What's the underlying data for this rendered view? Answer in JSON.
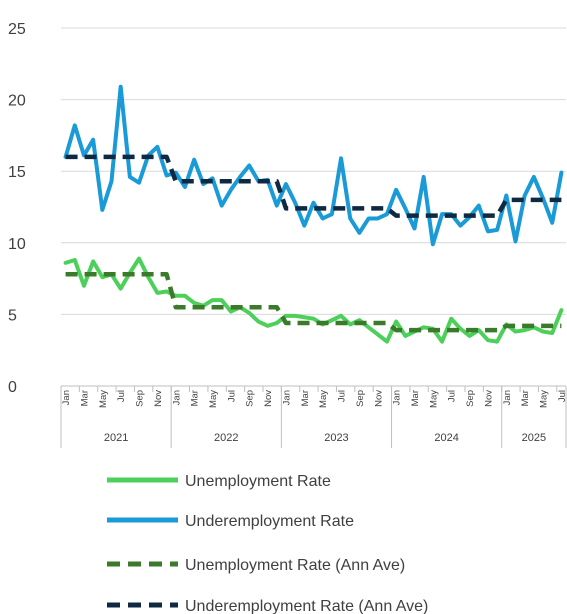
{
  "chart_data": {
    "type": "line",
    "title": "",
    "xlabel": "",
    "ylabel": "",
    "ylim": [
      0,
      25
    ],
    "yticks": [
      "0",
      "5",
      "10",
      "15",
      "20",
      "25"
    ],
    "grid": true,
    "legend_position": "bottom",
    "x": [
      "2021-01",
      "2021-02",
      "2021-03",
      "2021-04",
      "2021-05",
      "2021-06",
      "2021-07",
      "2021-08",
      "2021-09",
      "2021-10",
      "2021-11",
      "2021-12",
      "2022-01",
      "2022-02",
      "2022-03",
      "2022-04",
      "2022-05",
      "2022-06",
      "2022-07",
      "2022-08",
      "2022-09",
      "2022-10",
      "2022-11",
      "2022-12",
      "2023-01",
      "2023-02",
      "2023-03",
      "2023-04",
      "2023-05",
      "2023-06",
      "2023-07",
      "2023-08",
      "2023-09",
      "2023-10",
      "2023-11",
      "2023-12",
      "2024-01",
      "2024-02",
      "2024-03",
      "2024-04",
      "2024-05",
      "2024-06",
      "2024-07",
      "2024-08",
      "2024-09",
      "2024-10",
      "2024-11",
      "2024-12",
      "2025-01",
      "2025-02",
      "2025-03",
      "2025-04",
      "2025-05",
      "2025-06",
      "2025-07"
    ],
    "month_tick_labels": [
      "Jan",
      "Mar",
      "May",
      "Jul",
      "Sep",
      "Nov",
      "Jan",
      "Mar",
      "May",
      "Jul",
      "Sep",
      "Nov",
      "Jan",
      "Mar",
      "May",
      "Jul",
      "Sep",
      "Nov",
      "Jan",
      "Mar",
      "May",
      "Jul",
      "Sep",
      "Nov",
      "Jan",
      "Mar",
      "May",
      "Jul"
    ],
    "year_labels": [
      {
        "label": "2021",
        "start": 0,
        "end": 11
      },
      {
        "label": "2022",
        "start": 12,
        "end": 23
      },
      {
        "label": "2023",
        "start": 24,
        "end": 35
      },
      {
        "label": "2024",
        "start": 36,
        "end": 47
      },
      {
        "label": "2025",
        "start": 48,
        "end": 54
      }
    ],
    "series": [
      {
        "name": "Unemployment Rate",
        "color": "#4cd05a",
        "dash": "solid",
        "values": [
          8.6,
          8.8,
          7.0,
          8.7,
          7.6,
          7.8,
          6.8,
          7.9,
          8.9,
          7.6,
          6.5,
          6.6,
          6.3,
          6.3,
          5.8,
          5.6,
          6.0,
          6.0,
          5.2,
          5.5,
          5.1,
          4.5,
          4.2,
          4.4,
          4.9,
          4.9,
          4.8,
          4.7,
          4.3,
          4.6,
          4.9,
          4.3,
          4.6,
          4.1,
          3.6,
          3.1,
          4.5,
          3.5,
          3.8,
          4.1,
          4.0,
          3.1,
          4.7,
          4.0,
          3.5,
          3.9,
          3.2,
          3.1,
          4.3,
          3.8,
          3.9,
          4.1,
          3.8,
          3.7,
          5.3
        ]
      },
      {
        "name": "Underemployment Rate",
        "color": "#1a9ad6",
        "dash": "solid",
        "values": [
          16.0,
          18.2,
          16.1,
          17.2,
          12.3,
          14.3,
          20.9,
          14.6,
          14.2,
          16.1,
          16.7,
          14.7,
          14.9,
          13.9,
          15.8,
          14.1,
          14.5,
          12.6,
          13.7,
          14.6,
          15.4,
          14.3,
          14.4,
          12.6,
          14.1,
          12.8,
          11.2,
          12.8,
          11.7,
          12.0,
          15.9,
          11.7,
          10.7,
          11.7,
          11.7,
          12.0,
          13.7,
          12.4,
          11.0,
          14.6,
          9.9,
          12.0,
          12.0,
          11.2,
          11.8,
          12.6,
          10.8,
          10.9,
          13.3,
          10.1,
          13.3,
          14.6,
          13.1,
          11.4,
          14.9
        ]
      },
      {
        "name": "Unemployment Rate (Ann Ave)",
        "color": "#3b7a2a",
        "dash": "dashed",
        "values": [
          7.8,
          7.8,
          7.8,
          7.8,
          7.8,
          7.8,
          7.8,
          7.8,
          7.8,
          7.8,
          7.8,
          7.8,
          5.5,
          5.5,
          5.5,
          5.5,
          5.5,
          5.5,
          5.5,
          5.5,
          5.5,
          5.5,
          5.5,
          5.5,
          4.4,
          4.4,
          4.4,
          4.4,
          4.4,
          4.4,
          4.4,
          4.4,
          4.4,
          4.4,
          4.4,
          4.4,
          3.9,
          3.9,
          3.9,
          3.9,
          3.9,
          3.9,
          3.9,
          3.9,
          3.9,
          3.9,
          3.9,
          3.9,
          4.2,
          4.2,
          4.2,
          4.2,
          4.2,
          4.2,
          4.2
        ]
      },
      {
        "name": "Underemployment Rate (Ann Ave)",
        "color": "#0f2942",
        "dash": "dashed",
        "values": [
          16.0,
          16.0,
          16.0,
          16.0,
          16.0,
          16.0,
          16.0,
          16.0,
          16.0,
          16.0,
          16.0,
          16.0,
          14.3,
          14.3,
          14.3,
          14.3,
          14.3,
          14.3,
          14.3,
          14.3,
          14.3,
          14.3,
          14.3,
          14.3,
          12.4,
          12.4,
          12.4,
          12.4,
          12.4,
          12.4,
          12.4,
          12.4,
          12.4,
          12.4,
          12.4,
          12.4,
          11.9,
          11.9,
          11.9,
          11.9,
          11.9,
          11.9,
          11.9,
          11.9,
          11.9,
          11.9,
          11.9,
          11.9,
          13.0,
          13.0,
          13.0,
          13.0,
          13.0,
          13.0,
          13.0
        ]
      }
    ]
  }
}
